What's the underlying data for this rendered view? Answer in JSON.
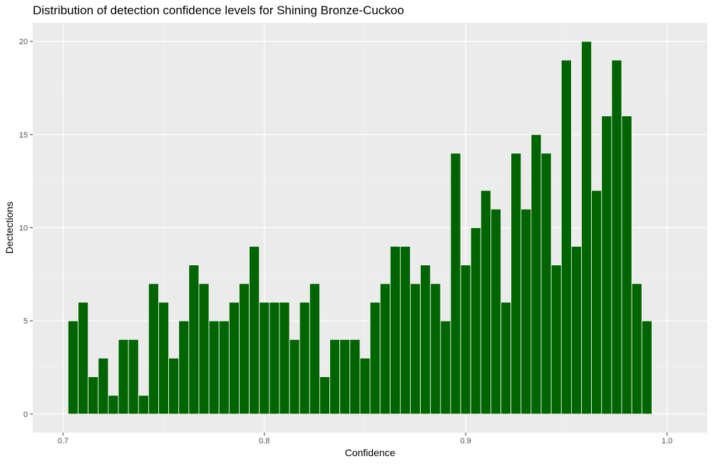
{
  "chart_data": {
    "type": "bar",
    "title": "Distribution of detection confidence levels for Shining Bronze-Cuckoo",
    "xlabel": "Confidence",
    "ylabel": "Dectections",
    "xlim": [
      0.685,
      1.02
    ],
    "ylim": [
      -1,
      21
    ],
    "x_ticks": [
      0.7,
      0.8,
      0.9,
      1.0
    ],
    "x_tick_labels": [
      "0.7",
      "0.8",
      "0.9",
      "1.0"
    ],
    "y_ticks": [
      0,
      5,
      10,
      15,
      20
    ],
    "y_tick_labels": [
      "0",
      "5",
      "10",
      "15",
      "20"
    ],
    "bin_start": 0.7025,
    "bin_width": 0.005,
    "values": [
      5,
      6,
      2,
      3,
      1,
      4,
      4,
      1,
      7,
      6,
      3,
      5,
      8,
      7,
      5,
      5,
      6,
      7,
      9,
      6,
      6,
      6,
      4,
      6,
      7,
      2,
      4,
      4,
      4,
      3,
      6,
      7,
      9,
      9,
      7,
      8,
      7,
      5,
      14,
      8,
      10,
      12,
      11,
      6,
      14,
      11,
      15,
      14,
      8,
      19,
      9,
      20,
      12,
      16,
      19,
      16,
      7,
      5
    ],
    "colors": {
      "bar_fill": "#006400",
      "bar_stroke": "#ffffff",
      "panel": "#ebebeb",
      "grid_major": "#ffffff",
      "grid_minor": "#f5f5f5"
    },
    "grid": true,
    "legend": "none"
  }
}
